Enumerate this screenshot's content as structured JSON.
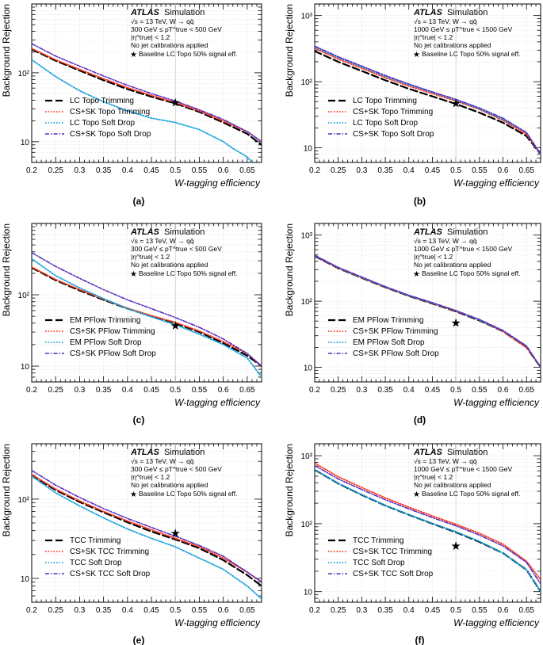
{
  "figure": {
    "ylabel": "Background Rejection",
    "xlabel": "W-tagging efficiency"
  },
  "chart_data": [
    {
      "panel": "(a)",
      "type": "line",
      "y_scale": "log",
      "xlim": [
        0.2,
        0.68
      ],
      "ylim": [
        5,
        1000
      ],
      "x_ticks": [
        "0.2",
        "0.25",
        "0.3",
        "0.35",
        "0.4",
        "0.45",
        "0.5",
        "0.55",
        "0.6",
        "0.65"
      ],
      "y_ticks": [
        "10",
        "10²"
      ],
      "xlabel": "W-tagging efficiency",
      "ylabel": "Background Rejection",
      "info": [
        "ATLAS Simulation",
        "√s = 13 TeV, W → qq̄",
        "300 GeV ≤ pT^true < 500 GeV",
        "|η^true| < 1.2",
        "No jet calibrations applied",
        "Baseline LC Topo 50% signal eff."
      ],
      "reference_point": {
        "label": "Baseline LC Topo 50% signal eff.",
        "x": 0.5,
        "y": 37
      },
      "legend_position": "bottom-left",
      "series": [
        {
          "name": "LC Topo Trimming",
          "style": "dashed-black",
          "color": "#000000",
          "x": [
            0.2,
            0.25,
            0.3,
            0.35,
            0.4,
            0.45,
            0.5,
            0.55,
            0.6,
            0.65,
            0.68
          ],
          "y": [
            220,
            150,
            108,
            78,
            58,
            45,
            36,
            27,
            19,
            13,
            9
          ]
        },
        {
          "name": "CS+SK Topo Trimming",
          "style": "dotted-red",
          "color": "#ff3b1f",
          "x": [
            0.2,
            0.25,
            0.3,
            0.35,
            0.4,
            0.45,
            0.5,
            0.55,
            0.6,
            0.65,
            0.68
          ],
          "y": [
            225,
            155,
            112,
            82,
            61,
            47,
            37,
            28,
            20,
            14,
            10
          ]
        },
        {
          "name": "LC Topo Soft Drop",
          "style": "dotted-blue",
          "color": "#1aa3dd",
          "x": [
            0.2,
            0.25,
            0.3,
            0.35,
            0.4,
            0.45,
            0.5,
            0.55,
            0.6,
            0.62,
            0.65,
            0.66
          ],
          "y": [
            155,
            88,
            55,
            38,
            28,
            22,
            19,
            15,
            10,
            8,
            6,
            5
          ]
        },
        {
          "name": "CS+SK Topo Soft Drop",
          "style": "dashdot-purple",
          "color": "#5a2dbf",
          "x": [
            0.2,
            0.25,
            0.3,
            0.35,
            0.4,
            0.45,
            0.5,
            0.55,
            0.6,
            0.65,
            0.68
          ],
          "y": [
            265,
            175,
            125,
            90,
            66,
            50,
            39,
            29,
            21,
            14,
            10
          ]
        }
      ]
    },
    {
      "panel": "(b)",
      "type": "line",
      "y_scale": "log",
      "xlim": [
        0.2,
        0.68
      ],
      "ylim": [
        6,
        1500
      ],
      "x_ticks": [
        "0.2",
        "0.25",
        "0.3",
        "0.35",
        "0.4",
        "0.45",
        "0.5",
        "0.55",
        "0.6",
        "0.65"
      ],
      "y_ticks": [
        "10",
        "10²",
        "10³"
      ],
      "xlabel": "W-tagging efficiency",
      "ylabel": "Background Rejection",
      "info": [
        "ATLAS Simulation",
        "√s = 13 TeV, W → qq̄",
        "1000 GeV ≤ pT^true < 1500 GeV",
        "|η^true| < 1.2",
        "No jet calibrations applied",
        "Baseline LC Topo 50% signal eff."
      ],
      "reference_point": {
        "label": "Baseline LC Topo 50% signal eff.",
        "x": 0.5,
        "y": 47
      },
      "legend_position": "bottom-left",
      "series": [
        {
          "name": "LC Topo Trimming",
          "style": "dashed-black",
          "color": "#000000",
          "x": [
            0.2,
            0.25,
            0.3,
            0.35,
            0.4,
            0.45,
            0.5,
            0.55,
            0.6,
            0.65,
            0.68
          ],
          "y": [
            290,
            200,
            145,
            105,
            78,
            60,
            46,
            34,
            24,
            15,
            8
          ]
        },
        {
          "name": "CS+SK Topo Trimming",
          "style": "dotted-red",
          "color": "#ff3b1f",
          "x": [
            0.2,
            0.25,
            0.3,
            0.35,
            0.4,
            0.45,
            0.5,
            0.55,
            0.6,
            0.65,
            0.68
          ],
          "y": [
            320,
            220,
            160,
            115,
            86,
            66,
            51,
            38,
            26,
            16,
            8
          ]
        },
        {
          "name": "LC Topo Soft Drop",
          "style": "dotted-blue",
          "color": "#1aa3dd",
          "x": [
            0.2,
            0.25,
            0.3,
            0.35,
            0.4,
            0.45,
            0.5,
            0.55,
            0.6,
            0.65,
            0.68
          ],
          "y": [
            335,
            232,
            168,
            121,
            90,
            69,
            53,
            39,
            27,
            17,
            8
          ]
        },
        {
          "name": "CS+SK Topo Soft Drop",
          "style": "dashdot-purple",
          "color": "#5a2dbf",
          "x": [
            0.2,
            0.25,
            0.3,
            0.35,
            0.4,
            0.45,
            0.5,
            0.55,
            0.6,
            0.65,
            0.68
          ],
          "y": [
            345,
            238,
            172,
            124,
            92,
            70,
            54,
            40,
            28,
            17,
            8
          ]
        }
      ]
    },
    {
      "panel": "(c)",
      "type": "line",
      "y_scale": "log",
      "xlim": [
        0.2,
        0.68
      ],
      "ylim": [
        6,
        1000
      ],
      "x_ticks": [
        "0.2",
        "0.25",
        "0.3",
        "0.35",
        "0.4",
        "0.45",
        "0.5",
        "0.55",
        "0.6",
        "0.65"
      ],
      "y_ticks": [
        "10",
        "10²"
      ],
      "xlabel": "W-tagging efficiency",
      "ylabel": "Background Rejection",
      "info": [
        "ATLAS Simulation",
        "√s = 13 TeV, W → qq̄",
        "300 GeV ≤ pT^true < 500 GeV",
        "|η^true| < 1.2",
        "No jet calibrations applied",
        "Baseline LC Topo 50% signal eff."
      ],
      "reference_point": {
        "label": "Baseline LC Topo 50% signal eff.",
        "x": 0.5,
        "y": 37
      },
      "legend_position": "bottom-left",
      "series": [
        {
          "name": "EM PFlow Trimming",
          "style": "dashed-black",
          "color": "#000000",
          "x": [
            0.2,
            0.25,
            0.3,
            0.35,
            0.4,
            0.45,
            0.5,
            0.55,
            0.6,
            0.65,
            0.68
          ],
          "y": [
            240,
            160,
            115,
            85,
            64,
            50,
            40,
            30,
            21,
            14,
            10
          ]
        },
        {
          "name": "CS+SK PFlow Trimming",
          "style": "dotted-red",
          "color": "#ff3b1f",
          "x": [
            0.2,
            0.25,
            0.3,
            0.35,
            0.4,
            0.45,
            0.5,
            0.55,
            0.6,
            0.65,
            0.68
          ],
          "y": [
            245,
            164,
            118,
            87,
            65,
            51,
            41,
            31,
            22,
            15,
            10
          ]
        },
        {
          "name": "EM PFlow Soft Drop",
          "style": "dotted-blue",
          "color": "#1aa3dd",
          "x": [
            0.2,
            0.25,
            0.3,
            0.35,
            0.4,
            0.45,
            0.5,
            0.55,
            0.6,
            0.65,
            0.68
          ],
          "y": [
            320,
            185,
            125,
            88,
            64,
            49,
            38,
            28,
            20,
            13,
            7
          ]
        },
        {
          "name": "CS+SK PFlow Soft Drop",
          "style": "dashdot-purple",
          "color": "#5a2dbf",
          "x": [
            0.2,
            0.25,
            0.3,
            0.35,
            0.4,
            0.45,
            0.5,
            0.55,
            0.6,
            0.65,
            0.68
          ],
          "y": [
            390,
            250,
            170,
            118,
            85,
            64,
            48,
            35,
            24,
            15,
            10
          ]
        }
      ]
    },
    {
      "panel": "(d)",
      "type": "line",
      "y_scale": "log",
      "xlim": [
        0.2,
        0.68
      ],
      "ylim": [
        6,
        1500
      ],
      "x_ticks": [
        "0.2",
        "0.25",
        "0.3",
        "0.35",
        "0.4",
        "0.45",
        "0.5",
        "0.55",
        "0.6",
        "0.65"
      ],
      "y_ticks": [
        "10",
        "10²",
        "10³"
      ],
      "xlabel": "W-tagging efficiency",
      "ylabel": "Background Rejection",
      "info": [
        "ATLAS Simulation",
        "√s = 13 TeV, W → qq̄",
        "1000 GeV ≤ pT^true < 1500 GeV",
        "|η^true| < 1.2",
        "No jet calibrations applied",
        "Baseline LC Topo 50% signal eff."
      ],
      "reference_point": {
        "label": "Baseline LC Topo 50% signal eff.",
        "x": 0.5,
        "y": 47
      },
      "legend_position": "bottom-left",
      "series": [
        {
          "name": "EM PFlow Trimming",
          "style": "dashed-black",
          "color": "#000000",
          "x": [
            0.2,
            0.25,
            0.3,
            0.35,
            0.4,
            0.45,
            0.5,
            0.55,
            0.6,
            0.65,
            0.68
          ],
          "y": [
            480,
            315,
            225,
            162,
            120,
            92,
            70,
            51,
            35,
            20,
            10
          ]
        },
        {
          "name": "CS+SK PFlow Trimming",
          "style": "dotted-red",
          "color": "#ff3b1f",
          "x": [
            0.2,
            0.25,
            0.3,
            0.35,
            0.4,
            0.45,
            0.5,
            0.55,
            0.6,
            0.65,
            0.68
          ],
          "y": [
            485,
            318,
            227,
            163,
            121,
            93,
            71,
            52,
            35,
            20,
            10
          ]
        },
        {
          "name": "EM PFlow Soft Drop",
          "style": "dotted-blue",
          "color": "#1aa3dd",
          "x": [
            0.2,
            0.25,
            0.3,
            0.35,
            0.4,
            0.45,
            0.5,
            0.55,
            0.6,
            0.65,
            0.68
          ],
          "y": [
            490,
            322,
            230,
            165,
            122,
            94,
            72,
            52,
            36,
            21,
            10
          ]
        },
        {
          "name": "CS+SK PFlow Soft Drop",
          "style": "dashdot-purple",
          "color": "#5a2dbf",
          "x": [
            0.2,
            0.25,
            0.3,
            0.35,
            0.4,
            0.45,
            0.5,
            0.55,
            0.6,
            0.65,
            0.68
          ],
          "y": [
            495,
            325,
            232,
            166,
            123,
            95,
            72,
            53,
            36,
            21,
            10
          ]
        }
      ]
    },
    {
      "panel": "(e)",
      "type": "line",
      "y_scale": "log",
      "xlim": [
        0.2,
        0.68
      ],
      "ylim": [
        5,
        500
      ],
      "x_ticks": [
        "0.2",
        "0.25",
        "0.3",
        "0.35",
        "0.4",
        "0.45",
        "0.5",
        "0.55",
        "0.6",
        "0.65"
      ],
      "y_ticks": [
        "10",
        "10²"
      ],
      "xlabel": "W-tagging efficiency",
      "ylabel": "Background Rejection",
      "info": [
        "ATLAS Simulation",
        "√s = 13 TeV, W → qq̄",
        "300 GeV ≤ pT^true < 500 GeV",
        "|η^true| < 1.2",
        "No jet calibrations applied",
        "Baseline LC Topo 50% signal eff."
      ],
      "reference_point": {
        "label": "Baseline LC Topo 50% signal eff.",
        "x": 0.5,
        "y": 37
      },
      "legend_position": "bottom-left",
      "series": [
        {
          "name": "TCC Trimming",
          "style": "dashed-black",
          "color": "#000000",
          "x": [
            0.2,
            0.25,
            0.3,
            0.35,
            0.4,
            0.45,
            0.5,
            0.55,
            0.6,
            0.65,
            0.68
          ],
          "y": [
            200,
            130,
            92,
            68,
            51,
            39,
            31,
            24,
            17,
            11,
            8
          ]
        },
        {
          "name": "CS+SK TCC Trimming",
          "style": "dotted-red",
          "color": "#ff3b1f",
          "x": [
            0.2,
            0.25,
            0.3,
            0.35,
            0.4,
            0.45,
            0.5,
            0.55,
            0.6,
            0.65,
            0.68
          ],
          "y": [
            205,
            134,
            95,
            70,
            53,
            41,
            32,
            25,
            18,
            12,
            9
          ]
        },
        {
          "name": "TCC Soft Drop",
          "style": "dotted-blue",
          "color": "#1aa3dd",
          "x": [
            0.2,
            0.25,
            0.3,
            0.35,
            0.4,
            0.45,
            0.5,
            0.55,
            0.6,
            0.65,
            0.68
          ],
          "y": [
            195,
            120,
            82,
            58,
            42,
            32,
            25,
            18,
            13,
            8,
            5.5
          ]
        },
        {
          "name": "CS+SK TCC Soft Drop",
          "style": "dashdot-purple",
          "color": "#5a2dbf",
          "x": [
            0.2,
            0.25,
            0.3,
            0.35,
            0.4,
            0.45,
            0.5,
            0.55,
            0.6,
            0.65,
            0.68
          ],
          "y": [
            230,
            150,
            105,
            76,
            57,
            44,
            34,
            26,
            19,
            12,
            9
          ]
        }
      ]
    },
    {
      "panel": "(f)",
      "type": "line",
      "y_scale": "log",
      "xlim": [
        0.2,
        0.68
      ],
      "ylim": [
        7,
        1500
      ],
      "x_ticks": [
        "0.2",
        "0.25",
        "0.3",
        "0.35",
        "0.4",
        "0.45",
        "0.5",
        "0.55",
        "0.6",
        "0.65"
      ],
      "y_ticks": [
        "10",
        "10²",
        "10³"
      ],
      "xlabel": "W-tagging efficiency",
      "ylabel": "Background Rejection",
      "info": [
        "ATLAS Simulation",
        "√s = 13 TeV, W → qq̄",
        "1000 GeV ≤ pT^true < 1500 GeV",
        "|η^true| < 1.2",
        "No jet calibrations applied",
        "Baseline LC Topo 50% signal eff."
      ],
      "reference_point": {
        "label": "Baseline LC Topo 50% signal eff.",
        "x": 0.5,
        "y": 47
      },
      "legend_position": "bottom-left",
      "series": [
        {
          "name": "TCC Trimming",
          "style": "dashed-black",
          "color": "#000000",
          "x": [
            0.2,
            0.25,
            0.3,
            0.35,
            0.4,
            0.45,
            0.5,
            0.55,
            0.6,
            0.65,
            0.68
          ],
          "y": [
            620,
            390,
            265,
            185,
            135,
            100,
            75,
            54,
            37,
            21,
            10
          ]
        },
        {
          "name": "CS+SK TCC Trimming",
          "style": "dotted-red",
          "color": "#ff3b1f",
          "x": [
            0.2,
            0.25,
            0.3,
            0.35,
            0.4,
            0.45,
            0.5,
            0.55,
            0.6,
            0.65,
            0.68
          ],
          "y": [
            780,
            490,
            340,
            240,
            175,
            130,
            98,
            72,
            50,
            28,
            15
          ]
        },
        {
          "name": "TCC Soft Drop",
          "style": "dotted-blue",
          "color": "#1aa3dd",
          "x": [
            0.2,
            0.25,
            0.3,
            0.35,
            0.4,
            0.45,
            0.5,
            0.55,
            0.6,
            0.65,
            0.68
          ],
          "y": [
            625,
            392,
            267,
            186,
            136,
            101,
            76,
            55,
            37,
            21,
            10
          ]
        },
        {
          "name": "CS+SK TCC Soft Drop",
          "style": "dashdot-purple",
          "color": "#5a2dbf",
          "x": [
            0.2,
            0.25,
            0.3,
            0.35,
            0.4,
            0.45,
            0.5,
            0.55,
            0.6,
            0.65,
            0.68
          ],
          "y": [
            720,
            455,
            318,
            225,
            165,
            123,
            93,
            68,
            47,
            27,
            13
          ]
        }
      ]
    }
  ]
}
